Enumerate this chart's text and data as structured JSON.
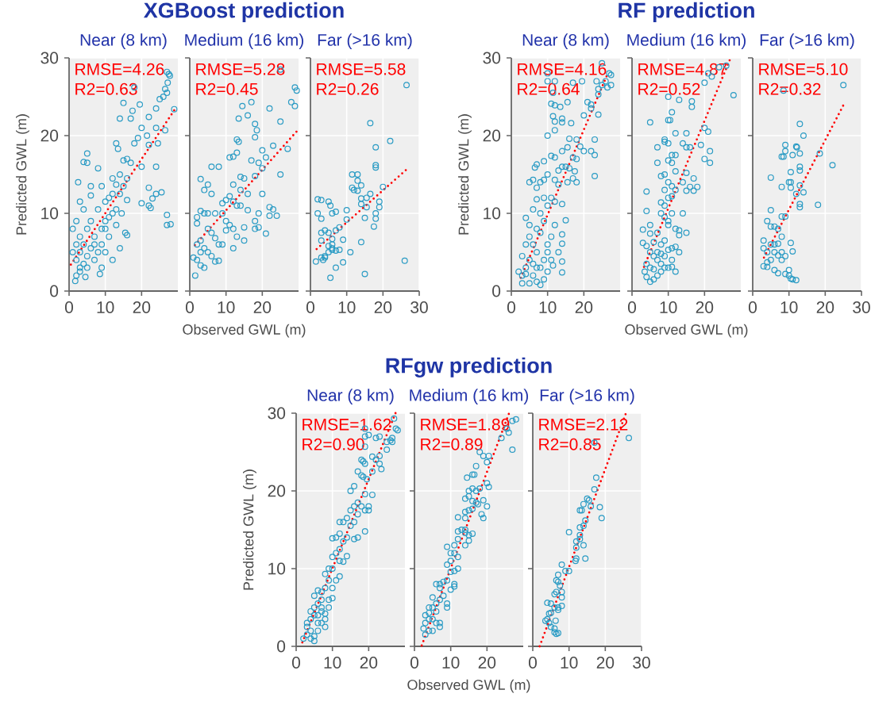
{
  "chart_data": [
    {
      "type": "scatter",
      "subtitle": "Near (8 km)",
      "ylabel": "Predicted GWL (m)",
      "annotations": [
        "RMSE=4.26",
        "R2=0.63"
      ],
      "xlim": [
        0,
        30
      ],
      "ylim": [
        0,
        30
      ],
      "xticks": [
        0,
        10,
        20
      ],
      "yticks": [
        0,
        10,
        20,
        30
      ],
      "grid": true,
      "marker": "circle",
      "series": [
        {
          "type": "scatter",
          "color": "#2a9bc4",
          "x": [
            27,
            27.5,
            27.8,
            26,
            27,
            26.5,
            27.2,
            29,
            25,
            24,
            22,
            19.5,
            17,
            17.5,
            18,
            15,
            14,
            24,
            20,
            21.5,
            26.5,
            24.5,
            18,
            19,
            22,
            20,
            24,
            13,
            13.5,
            5,
            4,
            5,
            8,
            2.5,
            16,
            15,
            17,
            14,
            12,
            13,
            22,
            24,
            23,
            25.5,
            20,
            22,
            22.5,
            27,
            27,
            28,
            16,
            14.5,
            15.5,
            16,
            14,
            12,
            8.5,
            9,
            10,
            1.7,
            2,
            3,
            4.5,
            3,
            4,
            6,
            6,
            8,
            9,
            10,
            11,
            12,
            13,
            11,
            9,
            7,
            6,
            5,
            4,
            3,
            2,
            1,
            1,
            2,
            3,
            4,
            5,
            6,
            7,
            8,
            10,
            11,
            13,
            14,
            15,
            16,
            12,
            10,
            9,
            7,
            5,
            3,
            2
          ],
          "values": [
            28.2,
            27.9,
            27.7,
            25,
            25.5,
            26,
            26.8,
            23.4,
            24.7,
            23.5,
            22.4,
            24,
            22.2,
            23.2,
            26.2,
            24.2,
            22.2,
            21,
            21,
            20,
            20.7,
            19,
            19,
            19.7,
            18.8,
            16,
            16,
            19,
            18.3,
            17.7,
            16.6,
            16.5,
            15.8,
            14,
            17,
            16.8,
            16.5,
            15,
            14.5,
            13.7,
            13.3,
            12.5,
            11.9,
            12.7,
            11.3,
            11,
            10.7,
            9.8,
            8.5,
            8.6,
            11.7,
            10,
            7.5,
            7.2,
            5.5,
            4,
            2.2,
            3,
            5,
            1.3,
            2,
            2.5,
            1.8,
            11.5,
            10.5,
            13.5,
            12.3,
            10.5,
            13.5,
            11.5,
            12,
            10,
            8.5,
            7,
            8,
            7,
            5.5,
            4.5,
            3.5,
            5,
            4,
            5,
            8,
            9,
            7,
            6,
            8,
            9,
            6,
            5,
            9,
            9.5,
            10.5,
            12.5,
            13.5,
            14.5,
            12.5,
            8,
            6,
            4,
            3,
            3,
            6
          ]
        },
        {
          "type": "line",
          "color": "#ff0000",
          "line_style": "dotted",
          "marker": "none",
          "x": [
            0.5,
            29.5
          ],
          "values": [
            3.4,
            23.6
          ]
        }
      ]
    },
    {
      "type": "scatter",
      "title": "XGBoost prediction",
      "subtitle": "Medium (16 km)",
      "xlabel": "Observed GWL (m)",
      "annotations": [
        "RMSE=5.28",
        "R2=0.45"
      ],
      "xlim": [
        0,
        30
      ],
      "ylim": [
        0,
        30
      ],
      "xticks": [
        0,
        10,
        20
      ],
      "yticks": [
        0,
        10,
        20,
        30
      ],
      "tick_labels": "x",
      "grid": true,
      "marker": "circle",
      "series": [
        {
          "type": "scatter",
          "color": "#2a9bc4",
          "x": [
            25,
            29,
            29.5,
            28,
            29,
            25,
            23,
            27,
            25,
            22,
            17,
            14.5,
            13.5,
            16,
            18,
            18.5,
            13,
            13.5,
            18,
            20,
            21,
            11,
            12,
            13,
            6,
            8,
            17,
            19,
            20,
            14,
            15,
            18,
            12,
            14,
            3,
            5,
            4,
            6,
            9,
            10,
            11,
            12,
            13,
            16,
            20,
            22,
            23,
            24,
            22,
            19,
            18,
            18,
            19,
            21,
            15,
            15,
            13,
            12,
            11,
            10,
            8,
            9,
            7,
            6,
            5,
            4,
            3,
            2,
            2,
            5,
            7,
            9,
            2,
            3,
            1,
            2,
            3,
            4,
            5,
            6,
            7,
            8,
            1.5,
            3,
            4,
            12,
            10,
            14,
            16
          ],
          "values": [
            28.5,
            26.2,
            25.8,
            24.3,
            23.8,
            21.8,
            18.7,
            18.3,
            15,
            23.5,
            24.3,
            23.8,
            22.2,
            22.6,
            21.5,
            20.7,
            19.5,
            19.2,
            19.8,
            18.1,
            17.2,
            17.2,
            17.3,
            17.8,
            16,
            16,
            16.8,
            16.5,
            15.8,
            14.7,
            14.5,
            14.8,
            13.7,
            13,
            14.4,
            13.7,
            13,
            12.5,
            11.3,
            11.7,
            12.2,
            11.5,
            11,
            12.5,
            12.5,
            10.8,
            10.5,
            9.7,
            9.7,
            10,
            9,
            8,
            8.2,
            7.4,
            8.2,
            6.5,
            7,
            8,
            8.5,
            7.8,
            6,
            6,
            6.8,
            7.5,
            8,
            10,
            10.3,
            8.7,
            9.5,
            10,
            10,
            10,
            6,
            6.5,
            4.3,
            4,
            5,
            5.5,
            5,
            4.5,
            3.8,
            3.9,
            2,
            3.3,
            3,
            5.5,
            9,
            11,
            10.4
          ]
        },
        {
          "type": "line",
          "color": "#ff0000",
          "line_style": "dotted",
          "marker": "none",
          "x": [
            1.4,
            29.8
          ],
          "values": [
            5.9,
            20.7
          ]
        }
      ]
    },
    {
      "type": "scatter",
      "subtitle": "Far (>16 km)",
      "annotations": [
        "RMSE=5.58",
        "R2=0.26"
      ],
      "xlim": [
        0,
        30
      ],
      "ylim": [
        0,
        30
      ],
      "xticks": [
        0,
        10,
        20,
        30
      ],
      "yticks": [
        0,
        10,
        20,
        30
      ],
      "tick_labels": "x",
      "grid": true,
      "marker": "circle",
      "series": [
        {
          "type": "scatter",
          "color": "#2a9bc4",
          "x": [
            26.5,
            16.5,
            18,
            22,
            18,
            18,
            11.5,
            13,
            13,
            14,
            11.5,
            12,
            13,
            20,
            16.5,
            15.5,
            14,
            14,
            19,
            19,
            15.5,
            18,
            18,
            17.5,
            15,
            14,
            10,
            10,
            8,
            7,
            6,
            5,
            6,
            5,
            4,
            2,
            3,
            2,
            3,
            5,
            5.5,
            6,
            7,
            3,
            3,
            1.5,
            3,
            4,
            3.5,
            5,
            6,
            7,
            8,
            9,
            11,
            9,
            7,
            5.5,
            15,
            26,
            6,
            4
          ],
          "values": [
            26.5,
            21.6,
            18.5,
            19.3,
            16.2,
            15.9,
            15,
            15,
            14.2,
            13.6,
            13.3,
            13,
            12.9,
            13.4,
            12.5,
            12,
            11.9,
            11.2,
            11.5,
            10.8,
            10.8,
            10,
            9.3,
            8.3,
            9.4,
            6.3,
            10.4,
            9.2,
            8.2,
            7.8,
            5.5,
            5.8,
            6.7,
            7.5,
            7.8,
            11.8,
            11.7,
            10,
            9.3,
            11.5,
            11,
            10,
            10.2,
            7.5,
            6.5,
            3.8,
            4.3,
            4.3,
            4,
            5,
            5.3,
            5.2,
            5.3,
            6.6,
            5,
            3.7,
            3,
            1.7,
            2.2,
            3.9,
            6,
            4.5
          ]
        },
        {
          "type": "line",
          "color": "#ff0000",
          "line_style": "dotted",
          "marker": "none",
          "x": [
            1.7,
            26.9
          ],
          "values": [
            5.4,
            15.8
          ]
        }
      ]
    },
    {
      "type": "scatter",
      "subtitle": "Near (8 km)",
      "ylabel": "Predicted GWL (m)",
      "annotations": [
        "RMSE=4.16",
        "R2=0.64"
      ],
      "xlim": [
        0,
        30
      ],
      "ylim": [
        0,
        30
      ],
      "xticks": [
        0,
        10,
        20
      ],
      "yticks": [
        0,
        10,
        20,
        30
      ],
      "grid": true,
      "marker": "circle",
      "series": [
        {
          "type": "scatter",
          "color": "#2a9bc4",
          "x": [
            25,
            27,
            27.5,
            26,
            25,
            26.5,
            27.5,
            24,
            24,
            23.5,
            20,
            19.5,
            10,
            10,
            12,
            11.5,
            17,
            15.5,
            24,
            22,
            21,
            22,
            12,
            11,
            13.5,
            11.5,
            12,
            14,
            14,
            16.5,
            10,
            12,
            16,
            18,
            23,
            20,
            22,
            19,
            17,
            18,
            23,
            23,
            14,
            15.5,
            11,
            12,
            9,
            7,
            6.5,
            15,
            13,
            14,
            16,
            17.5,
            18,
            17,
            15.5,
            12,
            13,
            9,
            10,
            8,
            6,
            5,
            7,
            11,
            12,
            9,
            10,
            14,
            15,
            14,
            14,
            13,
            14,
            14,
            11.5,
            11,
            10,
            12,
            7,
            6,
            8,
            9,
            4,
            5,
            7,
            8,
            11,
            10,
            9,
            8,
            6,
            5,
            7,
            8,
            3,
            2,
            3,
            4,
            5,
            6,
            7,
            5,
            4,
            3,
            6,
            7,
            9,
            10,
            4
          ],
          "values": [
            29.3,
            28,
            27.8,
            27,
            26.5,
            26.2,
            26.5,
            26,
            25.3,
            27,
            22.6,
            27,
            28,
            27,
            27,
            25.5,
            26.8,
            24.3,
            22.7,
            23.5,
            24.3,
            24,
            23.9,
            24.1,
            23.7,
            22.5,
            21.8,
            22.2,
            21.7,
            21.6,
            20,
            20.7,
            19.6,
            19.5,
            19.5,
            18,
            18,
            18.6,
            17.2,
            17,
            17.5,
            14.8,
            18,
            18.5,
            17.4,
            17.2,
            16.7,
            16.3,
            15.9,
            16,
            15.5,
            16,
            15.8,
            15.4,
            14,
            14.5,
            14,
            14.3,
            13.7,
            14.3,
            15,
            14,
            14.3,
            14,
            13.3,
            12,
            11.5,
            12,
            11,
            11.2,
            9.1,
            7.3,
            6.1,
            5,
            3.8,
            2.4,
            3.3,
            4,
            6,
            8.5,
            11.8,
            10.5,
            10,
            9,
            9.4,
            8.5,
            8,
            7.5,
            7,
            5,
            4,
            3,
            2,
            1,
            1.2,
            0.8,
            1,
            2.5,
            4.5,
            6,
            7,
            6,
            5,
            4,
            3,
            2,
            3.5,
            3,
            1.5,
            2.5,
            2.2
          ]
        },
        {
          "type": "line",
          "color": "#ff0000",
          "line_style": "dotted",
          "marker": "none",
          "x": [
            2.6,
            26.7
          ],
          "values": [
            1.7,
            28.1
          ]
        }
      ]
    },
    {
      "type": "scatter",
      "title": "RF prediction",
      "subtitle": "Medium (16 km)",
      "xlabel": "Observed GWL (m)",
      "annotations": [
        "RMSE=4.87",
        "R2=0.52"
      ],
      "xlim": [
        0,
        30
      ],
      "ylim": [
        0,
        30
      ],
      "xticks": [
        0,
        10,
        20
      ],
      "yticks": [
        0,
        10,
        20,
        30
      ],
      "tick_labels": "x",
      "grid": true,
      "marker": "circle",
      "series": [
        {
          "type": "scatter",
          "color": "#2a9bc4",
          "x": [
            26,
            24,
            22,
            21,
            20,
            28,
            10,
            13,
            16.5,
            16.5,
            11,
            10,
            10.5,
            5,
            20,
            21,
            12,
            15,
            9,
            9,
            10,
            14,
            15,
            16,
            19,
            20,
            21.5,
            21.5,
            7,
            11,
            12,
            10,
            11,
            7,
            15,
            12,
            9,
            8,
            10,
            11,
            12,
            14,
            17,
            18,
            16,
            15,
            17,
            9,
            10,
            11,
            8,
            9,
            4,
            4,
            8,
            9,
            10,
            11,
            14,
            12,
            13,
            15,
            13,
            12,
            13,
            11,
            10,
            11,
            10,
            12,
            11,
            9,
            8,
            7,
            5,
            5,
            3,
            3,
            4,
            5,
            6,
            7,
            8,
            9,
            8,
            7,
            6,
            5,
            4,
            3.5,
            4,
            5,
            6,
            7,
            8,
            9,
            6,
            10
          ],
          "values": [
            29,
            28.8,
            27.6,
            28,
            26.8,
            25.2,
            25,
            24.6,
            24.4,
            23.7,
            23,
            22,
            22,
            21.7,
            21,
            20.5,
            20.3,
            20.3,
            19.5,
            19.2,
            19,
            19,
            18.5,
            18.5,
            18.8,
            17,
            18,
            16.5,
            18.5,
            17.5,
            17.5,
            16.8,
            16.5,
            16.5,
            15.2,
            15.4,
            15,
            14.8,
            14,
            13.5,
            13,
            14,
            14.5,
            13.4,
            13.4,
            12.9,
            12.9,
            13,
            12,
            12.2,
            11.4,
            11,
            12.8,
            10.3,
            10,
            9.5,
            9,
            10,
            10,
            8,
            7.8,
            7.5,
            7.2,
            5.7,
            5,
            5.5,
            5.3,
            4,
            3,
            2.5,
            3.1,
            6.5,
            6,
            7.5,
            7.4,
            8.5,
            7.9,
            6.2,
            5.8,
            5,
            4.5,
            4,
            3.5,
            3,
            2.5,
            2,
            1.5,
            1.2,
            1.8,
            2.5,
            3.5,
            3,
            2.8,
            5,
            4.8,
            4.5,
            6.3,
            8.5
          ]
        },
        {
          "type": "line",
          "color": "#ff0000",
          "line_style": "dotted",
          "marker": "none",
          "x": [
            3.3,
            27.2
          ],
          "values": [
            3.1,
            30
          ]
        }
      ]
    },
    {
      "type": "scatter",
      "subtitle": "Far (>16 km)",
      "annotations": [
        "RMSE=5.10",
        "R2=0.32"
      ],
      "xlim": [
        0,
        30
      ],
      "ylim": [
        0,
        30
      ],
      "xticks": [
        0,
        10,
        20,
        30
      ],
      "yticks": [
        0,
        10,
        20,
        30
      ],
      "tick_labels": "x",
      "grid": true,
      "marker": "circle",
      "series": [
        {
          "type": "scatter",
          "color": "#2a9bc4",
          "x": [
            25,
            8.5,
            13,
            14,
            9,
            12,
            12.2,
            8,
            8.5,
            11,
            13,
            9,
            18.5,
            22,
            13,
            13,
            10.5,
            5,
            8,
            10.5,
            12,
            13,
            14,
            10,
            10.5,
            13,
            13,
            18,
            5,
            9,
            8,
            4,
            5,
            6,
            7,
            8,
            3,
            3,
            4,
            5,
            6,
            6,
            7,
            8,
            9,
            8,
            5,
            4,
            3,
            4,
            6,
            7,
            9,
            10,
            10.5,
            11,
            12,
            10,
            11,
            10.5,
            7
          ],
          "values": [
            26.5,
            25.8,
            21.5,
            20,
            18.8,
            18.6,
            18.5,
            17.3,
            17.3,
            17.5,
            17.7,
            18,
            17.7,
            16.2,
            16,
            15.5,
            15.3,
            14.6,
            13.4,
            13.3,
            12.5,
            13.6,
            12.7,
            14,
            14,
            11.2,
            10.8,
            11.1,
            10.4,
            9.6,
            9.6,
            9,
            8.3,
            8.3,
            8,
            7,
            6.5,
            5.5,
            5,
            6,
            6,
            5,
            4.6,
            5,
            4.5,
            4,
            4,
            3.7,
            3.2,
            3.1,
            2.7,
            2.3,
            2.2,
            2.7,
            1.6,
            1.5,
            1.4,
            2,
            5.1,
            6.2,
            6.1
          ]
        },
        {
          "type": "line",
          "color": "#ff0000",
          "line_style": "dotted",
          "marker": "none",
          "x": [
            3.1,
            25
          ],
          "values": [
            4.3,
            23.9
          ]
        }
      ]
    },
    {
      "type": "scatter",
      "subtitle": "Near (8 km)",
      "ylabel": "Predicted GWL (m)",
      "annotations": [
        "RMSE=1.62",
        "R2=0.90"
      ],
      "xlim": [
        0,
        30
      ],
      "ylim": [
        0,
        30
      ],
      "xticks": [
        0,
        10,
        20
      ],
      "yticks": [
        0,
        10,
        20,
        30
      ],
      "grid": true,
      "marker": "circle",
      "series": [
        {
          "type": "scatter",
          "color": "#2a9bc4",
          "x": [
            27,
            27.5,
            28,
            26.5,
            26,
            26.5,
            25,
            25,
            22,
            23,
            20,
            19,
            19,
            19,
            21,
            23,
            22,
            23,
            23.5,
            18,
            18.5,
            19,
            17,
            18,
            18.5,
            19.5,
            21,
            15,
            16,
            19,
            21,
            20,
            20,
            18,
            19,
            17,
            16,
            17,
            15,
            14,
            16,
            15,
            13,
            12,
            19,
            17,
            16,
            14,
            13,
            12,
            11,
            10,
            12,
            11,
            12,
            13,
            10,
            9,
            10,
            12,
            8,
            9,
            8,
            10,
            9,
            10,
            7,
            6,
            7,
            6,
            5,
            5,
            4,
            5,
            6,
            7,
            8,
            8,
            7,
            6,
            4,
            3,
            3,
            2,
            4,
            5,
            5,
            4,
            6,
            3,
            7,
            9,
            8,
            11,
            14
          ],
          "values": [
            29.3,
            28,
            27.8,
            26.8,
            26.5,
            26.3,
            25.3,
            26.3,
            26.8,
            27,
            27.2,
            28,
            27,
            25.7,
            24.4,
            24.5,
            24,
            23.5,
            22.8,
            24,
            23.8,
            23.5,
            22.5,
            22,
            21.8,
            21.5,
            22.5,
            20,
            20.6,
            19.6,
            19.5,
            18,
            17.5,
            18,
            17.5,
            18.5,
            18,
            17,
            17.5,
            16.5,
            16,
            15.5,
            16,
            16,
            14.8,
            14,
            13.8,
            14,
            13.5,
            14.5,
            14,
            13.9,
            12.5,
            12,
            11,
            10.9,
            11.5,
            10,
            10,
            9,
            9.3,
            8.5,
            7.5,
            7.5,
            6,
            6.2,
            7,
            7.2,
            6,
            5.5,
            6.5,
            5,
            4.5,
            4,
            4,
            4.5,
            3.5,
            2.5,
            3,
            3,
            3.5,
            2.5,
            1.5,
            1,
            1,
            1.3,
            0.7,
            2,
            2,
            3,
            5,
            5,
            4.2,
            8.5,
            11.6
          ]
        },
        {
          "type": "line",
          "color": "#ff0000",
          "line_style": "dotted",
          "marker": "none",
          "x": [
            1.7,
            27.4
          ],
          "values": [
            0.5,
            30
          ]
        }
      ]
    },
    {
      "type": "scatter",
      "title": "RFgw prediction",
      "subtitle": "Medium (16 km)",
      "xlabel": "Observed GWL (m)",
      "annotations": [
        "RMSE=1.89",
        "R2=0.89"
      ],
      "xlim": [
        0,
        30
      ],
      "ylim": [
        0,
        30
      ],
      "xticks": [
        0,
        10,
        20
      ],
      "yticks": [
        0,
        10,
        20,
        30
      ],
      "tick_labels": "x",
      "grid": true,
      "marker": "circle",
      "series": [
        {
          "type": "scatter",
          "color": "#2a9bc4",
          "x": [
            28,
            27,
            25.5,
            26,
            24,
            27,
            20.5,
            20,
            19,
            18,
            17,
            16,
            16.5,
            14.5,
            20,
            20.5,
            15,
            16,
            17,
            18,
            14,
            15,
            16,
            19,
            20,
            17,
            17.5,
            16,
            15,
            14,
            14,
            18.5,
            19,
            12,
            13,
            12,
            14,
            14,
            15,
            16,
            15,
            14,
            12,
            11,
            11,
            12,
            10,
            9,
            10,
            9,
            10,
            11,
            12,
            11,
            11,
            10,
            9,
            8,
            7,
            7,
            6,
            8,
            7,
            6,
            5,
            5,
            4,
            3,
            3,
            4,
            5,
            6,
            7,
            7,
            6,
            5,
            4,
            3,
            2.5,
            9,
            9,
            4
          ],
          "values": [
            29.2,
            29,
            28,
            27.5,
            26.8,
            25.3,
            24.5,
            23.7,
            24.5,
            25,
            23.2,
            22.1,
            22.1,
            21.7,
            21,
            20.5,
            20,
            20.3,
            20,
            20.3,
            19,
            19.3,
            18.7,
            18.8,
            18,
            18.5,
            18.3,
            17.7,
            17.5,
            17.3,
            16.5,
            17,
            16.5,
            16.6,
            15,
            14.8,
            15,
            14.6,
            14.3,
            14.5,
            13.6,
            13,
            13.8,
            13,
            12,
            11.5,
            12,
            12.8,
            11,
            10.5,
            9.6,
            9.7,
            10,
            8,
            7.7,
            7.3,
            8.5,
            8.3,
            8,
            7.5,
            8,
            6.5,
            6,
            5.5,
            6.3,
            5,
            4.3,
            4,
            3,
            3.5,
            3.5,
            4.5,
            3,
            2.5,
            3,
            2,
            2,
            1.5,
            2.3,
            5,
            5.5,
            5
          ]
        },
        {
          "type": "line",
          "color": "#ff0000",
          "line_style": "dotted",
          "marker": "none",
          "x": [
            2,
            26.1
          ],
          "values": [
            0.1,
            30
          ]
        }
      ]
    },
    {
      "type": "scatter",
      "subtitle": "Far (>16 km)",
      "annotations": [
        "RMSE=2.12",
        "R2=0.85"
      ],
      "xlim": [
        0,
        30
      ],
      "ylim": [
        0,
        30
      ],
      "xticks": [
        0,
        10,
        20,
        30
      ],
      "yticks": [
        0,
        10,
        20,
        30
      ],
      "tick_labels": "x",
      "grid": true,
      "marker": "circle",
      "series": [
        {
          "type": "scatter",
          "color": "#2a9bc4",
          "x": [
            26.5,
            17,
            17.5,
            17,
            18.5,
            19,
            15,
            15.5,
            14,
            13,
            13.5,
            16,
            14.5,
            14,
            13,
            10,
            12,
            13,
            13,
            14,
            12,
            12,
            11.8,
            14.5,
            8,
            9,
            10,
            7,
            6.5,
            7,
            7.5,
            8,
            6.5,
            8,
            8,
            6,
            5,
            6,
            7,
            4,
            4.5,
            4,
            3.5,
            4.5,
            5,
            6,
            6,
            6.5,
            7,
            6.3,
            7,
            5
          ],
          "values": [
            26.8,
            26.2,
            21.7,
            20.2,
            17.9,
            16.5,
            19,
            18.8,
            18.3,
            17.5,
            17.5,
            18,
            16.2,
            15.5,
            15.3,
            14.7,
            13.5,
            14.3,
            13.8,
            13,
            12.7,
            11.3,
            11,
            11.3,
            10.5,
            9.7,
            9.7,
            9.2,
            8.5,
            8.3,
            7.8,
            7,
            7,
            6.3,
            5.2,
            6.7,
            5.5,
            5,
            5,
            5.6,
            4.2,
            3.5,
            3.3,
            3,
            2.5,
            2.3,
            1.8,
            1.6,
            1.7,
            3.3,
            4.7,
            4.3
          ]
        },
        {
          "type": "line",
          "color": "#ff0000",
          "line_style": "dotted",
          "marker": "none",
          "x": [
            1.9,
            25.7
          ],
          "values": [
            0,
            30
          ]
        }
      ]
    }
  ]
}
